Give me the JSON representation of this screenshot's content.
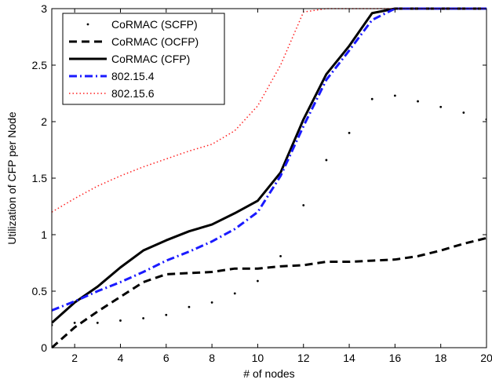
{
  "chart_data": {
    "type": "line",
    "title": "",
    "xlabel": "# of nodes",
    "ylabel": "Utilization of CFP per Node",
    "xlim": [
      1,
      20
    ],
    "ylim": [
      0,
      3
    ],
    "xticks": [
      2,
      4,
      6,
      8,
      10,
      12,
      14,
      16,
      18,
      20
    ],
    "yticks": [
      0,
      0.5,
      1,
      1.5,
      2,
      2.5,
      3
    ],
    "xtick_labels": [
      "2",
      "4",
      "6",
      "8",
      "10",
      "12",
      "14",
      "16",
      "18",
      "20"
    ],
    "ytick_labels": [
      "0",
      "0.5",
      "1",
      "1.5",
      "2",
      "2.5",
      "3"
    ],
    "grid": false,
    "legend_position": "top-left",
    "series": [
      {
        "name": "CoRMAC (SCFP)",
        "style": "dotted-markers",
        "color": "#000000",
        "x": [
          1,
          2,
          3,
          4,
          5,
          6,
          7,
          8,
          9,
          10,
          11,
          12,
          13,
          14,
          15,
          16,
          17,
          18,
          19,
          20
        ],
        "y": [
          0.2,
          0.22,
          0.22,
          0.24,
          0.26,
          0.29,
          0.36,
          0.4,
          0.48,
          0.59,
          0.81,
          1.26,
          1.66,
          1.9,
          2.2,
          2.23,
          2.18,
          2.13,
          2.08,
          2.02
        ]
      },
      {
        "name": "CoRMAC (OCFP)",
        "style": "dashed",
        "color": "#000000",
        "x": [
          1,
          2,
          3,
          4,
          5,
          6,
          7,
          8,
          9,
          10,
          11,
          12,
          13,
          14,
          15,
          16,
          17,
          18,
          19,
          20
        ],
        "y": [
          0.0,
          0.18,
          0.32,
          0.45,
          0.58,
          0.65,
          0.66,
          0.67,
          0.7,
          0.7,
          0.72,
          0.73,
          0.76,
          0.76,
          0.77,
          0.78,
          0.81,
          0.86,
          0.92,
          0.97
        ]
      },
      {
        "name": "CoRMAC (CFP)",
        "style": "solid",
        "color": "#000000",
        "x": [
          1,
          2,
          3,
          4,
          5,
          6,
          7,
          8,
          9,
          10,
          11,
          12,
          13,
          14,
          15,
          16,
          17,
          18,
          19,
          20
        ],
        "y": [
          0.22,
          0.4,
          0.54,
          0.71,
          0.86,
          0.95,
          1.03,
          1.09,
          1.19,
          1.3,
          1.55,
          2.02,
          2.42,
          2.67,
          2.96,
          3.0,
          3.0,
          3.0,
          3.0,
          3.0
        ]
      },
      {
        "name": "802.15.4",
        "style": "dash-dot",
        "color": "#1a1aff",
        "x": [
          1,
          2,
          3,
          4,
          5,
          6,
          7,
          8,
          9,
          10,
          11,
          12,
          13,
          14,
          15,
          16,
          17,
          18,
          19,
          20
        ],
        "y": [
          0.33,
          0.41,
          0.5,
          0.58,
          0.67,
          0.77,
          0.85,
          0.94,
          1.05,
          1.2,
          1.52,
          1.96,
          2.37,
          2.63,
          2.9,
          3.0,
          3.0,
          3.0,
          3.0,
          3.0
        ]
      },
      {
        "name": "802.15.6",
        "style": "dotted",
        "color": "#ff2020",
        "x": [
          1,
          2,
          3,
          4,
          5,
          6,
          7,
          8,
          9,
          10,
          11,
          12,
          13,
          14,
          15,
          16,
          17,
          18,
          19,
          20
        ],
        "y": [
          1.2,
          1.32,
          1.43,
          1.52,
          1.6,
          1.67,
          1.74,
          1.8,
          1.92,
          2.14,
          2.5,
          2.97,
          3.0,
          3.0,
          3.0,
          3.0,
          3.0,
          3.0,
          3.0,
          3.0
        ]
      }
    ]
  }
}
